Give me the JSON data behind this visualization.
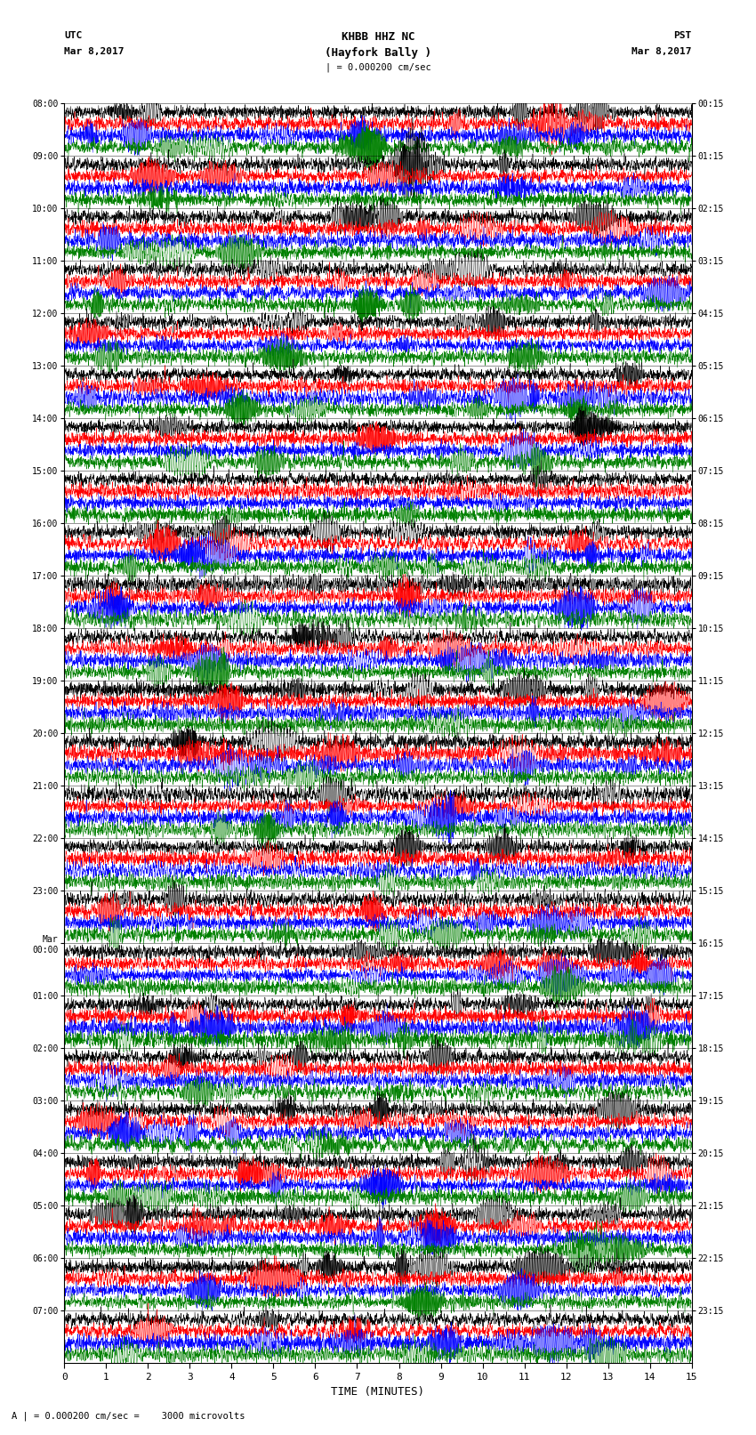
{
  "title_line1": "KHBB HHZ NC",
  "title_line2": "(Hayfork Bally )",
  "scale_text": "| = 0.000200 cm/sec",
  "left_label_1": "UTC",
  "left_label_2": "Mar 8,2017",
  "right_label_1": "PST",
  "right_label_2": "Mar 8,2017",
  "bottom_label": "TIME (MINUTES)",
  "footer_text": "A | = 0.000200 cm/sec =    3000 microvolts",
  "xlabel_ticks": [
    0,
    1,
    2,
    3,
    4,
    5,
    6,
    7,
    8,
    9,
    10,
    11,
    12,
    13,
    14,
    15
  ],
  "utc_times": [
    "08:00",
    "09:00",
    "10:00",
    "11:00",
    "12:00",
    "13:00",
    "14:00",
    "15:00",
    "16:00",
    "17:00",
    "18:00",
    "19:00",
    "20:00",
    "21:00",
    "22:00",
    "23:00",
    "Mar\n00:00",
    "01:00",
    "02:00",
    "03:00",
    "04:00",
    "05:00",
    "06:00",
    "07:00"
  ],
  "pst_times": [
    "00:15",
    "01:15",
    "02:15",
    "03:15",
    "04:15",
    "05:15",
    "06:15",
    "07:15",
    "08:15",
    "09:15",
    "10:15",
    "11:15",
    "12:15",
    "13:15",
    "14:15",
    "15:15",
    "16:15",
    "17:15",
    "18:15",
    "19:15",
    "20:15",
    "21:15",
    "22:15",
    "23:15"
  ],
  "n_rows": 24,
  "traces_per_row": 4,
  "trace_colors": [
    "black",
    "red",
    "blue",
    "green"
  ],
  "bg_color": "white",
  "fig_width": 8.5,
  "fig_height": 16.13,
  "dpi": 100,
  "xmin": 0,
  "xmax": 15,
  "noise_seed": 42
}
